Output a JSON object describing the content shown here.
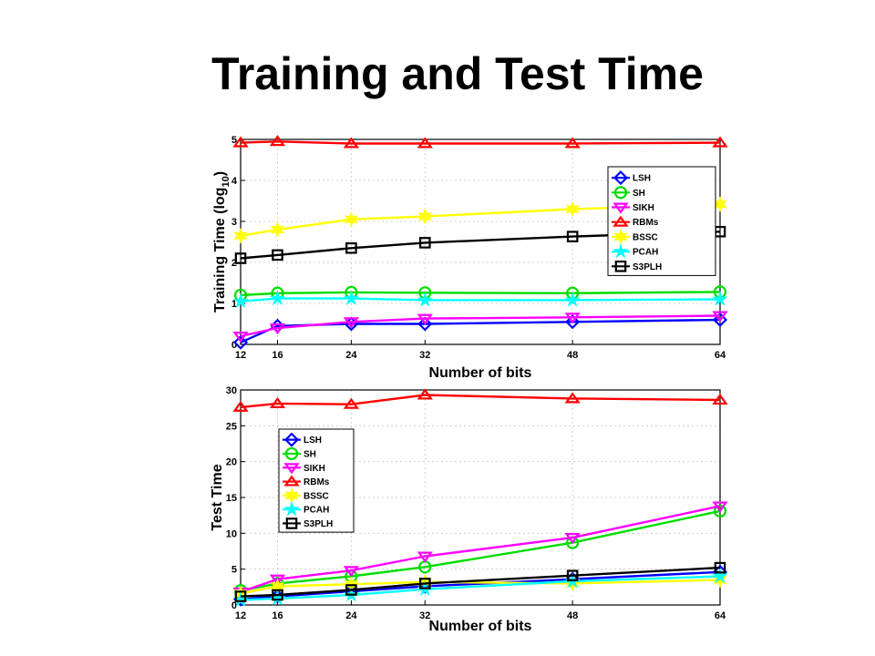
{
  "slide": {
    "title": "Training and Test Time"
  },
  "chart_data": [
    {
      "type": "line",
      "xlabel": "Number of bits",
      "ylabel": "Training Time (log",
      "ylabel_sub": "10",
      "ylabel_close": ")",
      "x": [
        12,
        16,
        24,
        32,
        48,
        64
      ],
      "xlim": [
        12,
        64
      ],
      "ylim": [
        0,
        5
      ],
      "yticks": [
        0,
        1,
        2,
        3,
        4,
        5
      ],
      "grid": true,
      "legend": "top-right",
      "series": [
        {
          "name": "LSH",
          "color": "#0000ff",
          "marker": "diamond",
          "values": [
            0.05,
            0.45,
            0.5,
            0.5,
            0.55,
            0.6
          ]
        },
        {
          "name": "SH",
          "color": "#00dd00",
          "marker": "circle",
          "values": [
            1.2,
            1.25,
            1.27,
            1.26,
            1.25,
            1.28
          ]
        },
        {
          "name": "SIKH",
          "color": "#ff00ff",
          "marker": "tri-down",
          "values": [
            0.2,
            0.4,
            0.55,
            0.63,
            0.66,
            0.7
          ]
        },
        {
          "name": "RBMs",
          "color": "#ff0000",
          "marker": "tri-up",
          "values": [
            4.92,
            4.95,
            4.9,
            4.9,
            4.9,
            4.92
          ]
        },
        {
          "name": "BSSC",
          "color": "#ffff00",
          "marker": "hexagram",
          "values": [
            2.65,
            2.8,
            3.05,
            3.12,
            3.3,
            3.42
          ]
        },
        {
          "name": "PCAH",
          "color": "#00ffff",
          "marker": "pentagram",
          "values": [
            1.05,
            1.12,
            1.12,
            1.08,
            1.08,
            1.1
          ]
        },
        {
          "name": "S3PLH",
          "color": "#000000",
          "marker": "square",
          "values": [
            2.1,
            2.18,
            2.35,
            2.48,
            2.63,
            2.75
          ]
        }
      ]
    },
    {
      "type": "line",
      "xlabel": "Number of bits",
      "ylabel": "Test Time",
      "x": [
        12,
        16,
        24,
        32,
        48,
        64
      ],
      "xlim": [
        12,
        64
      ],
      "ylim": [
        0,
        30
      ],
      "yticks": [
        0,
        5,
        10,
        15,
        20,
        25,
        30
      ],
      "grid": true,
      "legend": "upper-left",
      "series": [
        {
          "name": "LSH",
          "color": "#0000ff",
          "marker": "diamond",
          "values": [
            0.8,
            1.2,
            1.9,
            2.6,
            3.6,
            4.6
          ]
        },
        {
          "name": "SH",
          "color": "#00dd00",
          "marker": "circle",
          "values": [
            2.0,
            3.0,
            4.0,
            5.3,
            8.7,
            13.1
          ]
        },
        {
          "name": "SIKH",
          "color": "#ff00ff",
          "marker": "tri-down",
          "values": [
            1.8,
            3.6,
            4.8,
            6.8,
            9.4,
            13.8
          ]
        },
        {
          "name": "RBMs",
          "color": "#ff0000",
          "marker": "tri-up",
          "values": [
            27.6,
            28.1,
            28.0,
            29.3,
            28.8,
            28.6
          ]
        },
        {
          "name": "BSSC",
          "color": "#ffff00",
          "marker": "hexagram",
          "values": [
            1.6,
            2.6,
            2.9,
            3.2,
            3.0,
            3.5
          ]
        },
        {
          "name": "PCAH",
          "color": "#00ffff",
          "marker": "pentagram",
          "values": [
            0.7,
            0.9,
            1.4,
            2.2,
            3.3,
            4.0
          ]
        },
        {
          "name": "S3PLH",
          "color": "#000000",
          "marker": "square",
          "values": [
            1.2,
            1.4,
            2.1,
            3.0,
            4.1,
            5.2
          ]
        }
      ]
    }
  ]
}
